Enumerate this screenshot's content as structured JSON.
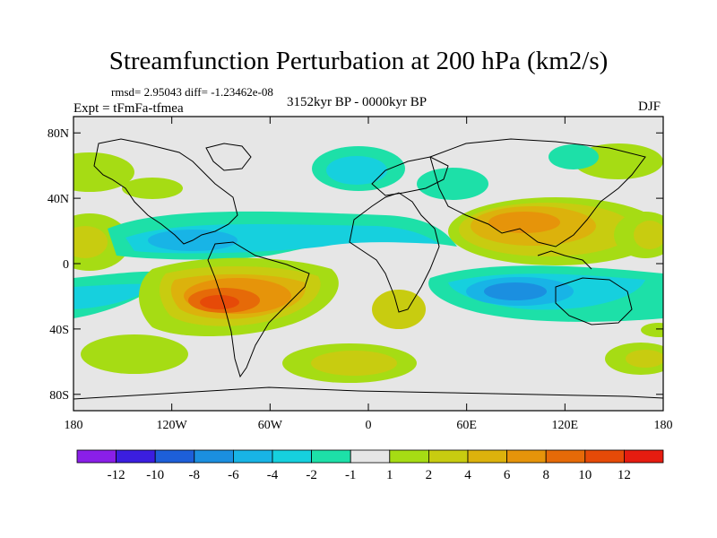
{
  "title": "Streamfunction Perturbation at 200 hPa (km2/s)",
  "stats": "rmsd= 2.95043 diff= -1.23462e-08",
  "experiment": "Expt = tFmFa-tfmea",
  "period": "3152kyr BP - 0000kyr BP",
  "season": "DJF",
  "lat_ticks": [
    {
      "value": 80,
      "label": "80N"
    },
    {
      "value": 40,
      "label": "40N"
    },
    {
      "value": 0,
      "label": "0"
    },
    {
      "value": -40,
      "label": "40S"
    },
    {
      "value": -80,
      "label": "80S"
    }
  ],
  "lon_ticks": [
    {
      "value": -180,
      "label": "180"
    },
    {
      "value": -120,
      "label": "120W"
    },
    {
      "value": -60,
      "label": "60W"
    },
    {
      "value": 0,
      "label": "0"
    },
    {
      "value": 60,
      "label": "60E"
    },
    {
      "value": 120,
      "label": "120E"
    },
    {
      "value": 180,
      "label": "180"
    }
  ],
  "colorbar": {
    "colors": [
      "#8a1fe8",
      "#3b1ee0",
      "#1d5fd9",
      "#1b8fe0",
      "#18b4e6",
      "#16d0de",
      "#1de0a8",
      "#e6e6e6",
      "#a6dc14",
      "#c8cc10",
      "#dcb20c",
      "#e6940a",
      "#e66a08",
      "#e64a08",
      "#e61c10"
    ],
    "labels": [
      "-12",
      "-10",
      "-8",
      "-6",
      "-4",
      "-2",
      "-1",
      "1",
      "2",
      "4",
      "6",
      "8",
      "10",
      "12"
    ]
  },
  "chart_data": {
    "type": "heatmap",
    "title": "Streamfunction Perturbation at 200 hPa (km2/s)",
    "variable": "Streamfunction Perturbation",
    "level": "200 hPa",
    "units": "km2/s",
    "xlim": [
      -180,
      180
    ],
    "ylim": [
      -90,
      90
    ],
    "contour_levels": [
      -12,
      -10,
      -8,
      -6,
      -4,
      -2,
      -1,
      1,
      2,
      4,
      6,
      8,
      10,
      12
    ],
    "features": [
      {
        "name": "south-america-max",
        "lon": -85,
        "lat": -25,
        "value": 10
      },
      {
        "name": "southern-subtropics-max",
        "lon": -80,
        "lat": -28,
        "value": 8
      },
      {
        "name": "asia-max",
        "lon": 100,
        "lat": 22,
        "value": 8
      },
      {
        "name": "central-pacific-asia-max",
        "lon": 85,
        "lat": 25,
        "value": 6
      },
      {
        "name": "east-pacific-max",
        "lon": -172,
        "lat": 15,
        "value": 4
      },
      {
        "name": "west-pacific-max",
        "lon": 170,
        "lat": 22,
        "value": 4
      },
      {
        "name": "south-atlantic-max",
        "lon": 20,
        "lat": -65,
        "value": 4
      },
      {
        "name": "south-pacific-max",
        "lon": 165,
        "lat": -65,
        "value": 4
      },
      {
        "name": "equatorial-band-min",
        "lon": -100,
        "lat": 12,
        "value": -4
      },
      {
        "name": "indian-ocean-min",
        "lon": 75,
        "lat": -22,
        "value": -6
      },
      {
        "name": "north-atlantic-min",
        "lon": -20,
        "lat": 60,
        "value": -2
      },
      {
        "name": "north-pacific-max",
        "lon": -180,
        "lat": 55,
        "value": 2
      },
      {
        "name": "southern-ocean-min",
        "lon": -170,
        "lat": -30,
        "value": -4
      }
    ]
  }
}
